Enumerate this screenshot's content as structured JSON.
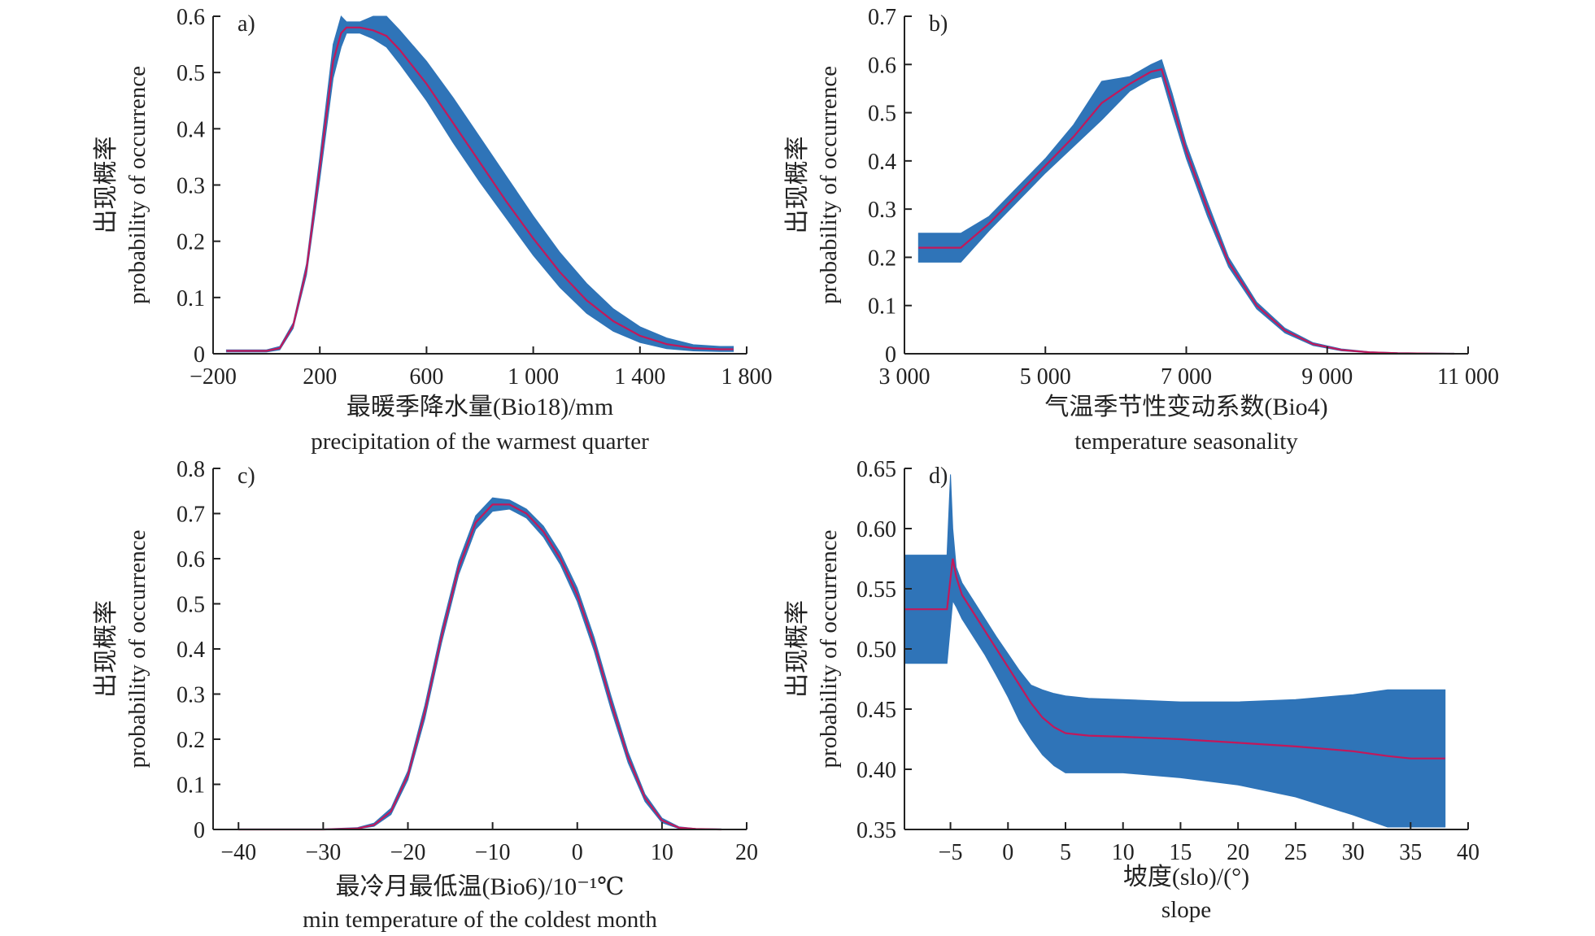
{
  "colors": {
    "band": "#2f74b8",
    "mean_line": "#c2185b",
    "axis": "#222222"
  },
  "chart_data": [
    {
      "id": "a",
      "type": "area",
      "panel_label": "a)",
      "xlabel_zh": "最暖季降水量(Bio18)/mm",
      "xlabel_en": "precipitation of the warmest quarter",
      "ylabel_zh": "出现概率",
      "ylabel_en": "probability of occurrence",
      "xlim": [
        -200,
        1800
      ],
      "ylim": [
        0,
        0.6
      ],
      "xticks": [
        -200,
        200,
        600,
        1000,
        1400,
        1800
      ],
      "xtick_labels": [
        "−200",
        "200",
        "600",
        "1 000",
        "1 400",
        "1 800"
      ],
      "yticks": [
        0,
        0.1,
        0.2,
        0.3,
        0.4,
        0.5,
        0.6
      ],
      "ytick_labels": [
        "0",
        "0.1",
        "0.2",
        "0.3",
        "0.4",
        "0.5",
        "0.6"
      ],
      "grid": false,
      "series": [
        {
          "role": "mean",
          "x": [
            -150,
            0,
            50,
            100,
            150,
            200,
            250,
            280,
            300,
            350,
            400,
            450,
            500,
            600,
            700,
            800,
            900,
            1000,
            1100,
            1200,
            1300,
            1400,
            1500,
            1600,
            1700,
            1750
          ],
          "y": [
            0.005,
            0.005,
            0.01,
            0.05,
            0.15,
            0.33,
            0.52,
            0.57,
            0.58,
            0.58,
            0.575,
            0.565,
            0.54,
            0.48,
            0.41,
            0.34,
            0.27,
            0.205,
            0.145,
            0.095,
            0.058,
            0.032,
            0.017,
            0.01,
            0.008,
            0.008
          ]
        },
        {
          "role": "upper",
          "x": [
            -150,
            0,
            50,
            100,
            150,
            200,
            250,
            280,
            300,
            350,
            400,
            450,
            500,
            600,
            700,
            800,
            900,
            1000,
            1100,
            1200,
            1300,
            1400,
            1500,
            1600,
            1700,
            1750
          ],
          "y": [
            0.007,
            0.007,
            0.013,
            0.055,
            0.16,
            0.35,
            0.55,
            0.6,
            0.59,
            0.59,
            0.6,
            0.6,
            0.575,
            0.52,
            0.455,
            0.385,
            0.315,
            0.245,
            0.18,
            0.125,
            0.08,
            0.048,
            0.028,
            0.016,
            0.013,
            0.013
          ]
        },
        {
          "role": "lower",
          "x": [
            -150,
            0,
            50,
            100,
            150,
            200,
            250,
            280,
            300,
            350,
            400,
            450,
            500,
            600,
            700,
            800,
            900,
            1000,
            1100,
            1200,
            1300,
            1400,
            1500,
            1600,
            1700,
            1750
          ],
          "y": [
            0.003,
            0.003,
            0.007,
            0.045,
            0.14,
            0.31,
            0.49,
            0.545,
            0.57,
            0.57,
            0.56,
            0.545,
            0.515,
            0.45,
            0.375,
            0.305,
            0.24,
            0.175,
            0.118,
            0.072,
            0.04,
            0.02,
            0.009,
            0.005,
            0.004,
            0.004
          ]
        }
      ]
    },
    {
      "id": "b",
      "type": "area",
      "panel_label": "b)",
      "xlabel_zh": "气温季节性变动系数(Bio4)",
      "xlabel_en": "temperature seasonality",
      "ylabel_zh": "出现概率",
      "ylabel_en": "probability of occurrence",
      "xlim": [
        3000,
        11000
      ],
      "ylim": [
        0,
        0.7
      ],
      "xticks": [
        3000,
        5000,
        7000,
        9000,
        11000
      ],
      "xtick_labels": [
        "3 000",
        "5 000",
        "7 000",
        "9 000",
        "11 000"
      ],
      "yticks": [
        0,
        0.1,
        0.2,
        0.3,
        0.4,
        0.5,
        0.6,
        0.7
      ],
      "ytick_labels": [
        "0",
        "0.1",
        "0.2",
        "0.3",
        "0.4",
        "0.5",
        "0.6",
        "0.7"
      ],
      "grid": false,
      "series": [
        {
          "role": "mean",
          "x": [
            3200,
            3800,
            4200,
            4600,
            5000,
            5400,
            5800,
            6200,
            6500,
            6650,
            6800,
            7000,
            7300,
            7600,
            8000,
            8400,
            8800,
            9200,
            9600,
            10000,
            10800
          ],
          "y": [
            0.22,
            0.22,
            0.27,
            0.33,
            0.39,
            0.45,
            0.52,
            0.56,
            0.585,
            0.59,
            0.52,
            0.42,
            0.3,
            0.19,
            0.1,
            0.048,
            0.02,
            0.008,
            0.003,
            0.001,
            0.0
          ]
        },
        {
          "role": "upper",
          "x": [
            3200,
            3800,
            4200,
            4600,
            5000,
            5400,
            5800,
            6200,
            6500,
            6650,
            6800,
            7000,
            7300,
            7600,
            8000,
            8400,
            8800,
            9200,
            9600,
            10000,
            10800
          ],
          "y": [
            0.25,
            0.25,
            0.285,
            0.345,
            0.405,
            0.475,
            0.565,
            0.575,
            0.6,
            0.61,
            0.54,
            0.435,
            0.315,
            0.2,
            0.107,
            0.053,
            0.023,
            0.01,
            0.004,
            0.002,
            0.001
          ]
        },
        {
          "role": "lower",
          "x": [
            3200,
            3800,
            4200,
            4600,
            5000,
            5400,
            5800,
            6200,
            6500,
            6650,
            6800,
            7000,
            7300,
            7600,
            8000,
            8400,
            8800,
            9200,
            9600,
            10000,
            10800
          ],
          "y": [
            0.19,
            0.19,
            0.255,
            0.315,
            0.375,
            0.43,
            0.485,
            0.545,
            0.57,
            0.575,
            0.5,
            0.405,
            0.285,
            0.18,
            0.093,
            0.043,
            0.017,
            0.006,
            0.002,
            0.0,
            0.0
          ]
        }
      ]
    },
    {
      "id": "c",
      "type": "area",
      "panel_label": "c)",
      "xlabel_zh": "最冷月最低温(Bio6)/10⁻¹℃",
      "xlabel_en": "min temperature of the coldest month",
      "ylabel_zh": "出现概率",
      "ylabel_en": "probability of occurrence",
      "xlim": [
        -43,
        20
      ],
      "ylim": [
        0,
        0.8
      ],
      "xticks": [
        -40,
        -30,
        -20,
        -10,
        0,
        10,
        20
      ],
      "xtick_labels": [
        "−40",
        "−30",
        "−20",
        "−10",
        "0",
        "10",
        "20"
      ],
      "yticks": [
        0,
        0.1,
        0.2,
        0.3,
        0.4,
        0.5,
        0.6,
        0.7,
        0.8
      ],
      "ytick_labels": [
        "0",
        "0.1",
        "0.2",
        "0.3",
        "0.4",
        "0.5",
        "0.6",
        "0.7",
        "0.8"
      ],
      "grid": false,
      "series": [
        {
          "role": "mean",
          "x": [
            -40,
            -30,
            -26,
            -24,
            -22,
            -20,
            -18,
            -16,
            -14,
            -12,
            -10,
            -8,
            -6,
            -4,
            -2,
            0,
            2,
            4,
            6,
            8,
            10,
            12,
            14,
            17
          ],
          "y": [
            0.0,
            0.0,
            0.002,
            0.01,
            0.04,
            0.12,
            0.26,
            0.43,
            0.58,
            0.68,
            0.72,
            0.72,
            0.7,
            0.66,
            0.6,
            0.52,
            0.41,
            0.28,
            0.16,
            0.07,
            0.02,
            0.004,
            0.001,
            0.0
          ]
        },
        {
          "role": "upper",
          "x": [
            -40,
            -30,
            -26,
            -24,
            -22,
            -20,
            -18,
            -16,
            -14,
            -12,
            -10,
            -8,
            -6,
            -4,
            -2,
            0,
            2,
            4,
            6,
            8,
            10,
            12,
            14,
            17
          ],
          "y": [
            0.001,
            0.001,
            0.004,
            0.014,
            0.047,
            0.13,
            0.275,
            0.445,
            0.595,
            0.695,
            0.735,
            0.73,
            0.71,
            0.672,
            0.613,
            0.535,
            0.425,
            0.295,
            0.172,
            0.078,
            0.025,
            0.006,
            0.002,
            0.001
          ]
        },
        {
          "role": "lower",
          "x": [
            -40,
            -30,
            -26,
            -24,
            -22,
            -20,
            -18,
            -16,
            -14,
            -12,
            -10,
            -8,
            -6,
            -4,
            -2,
            0,
            2,
            4,
            6,
            8,
            10,
            12,
            14,
            17
          ],
          "y": [
            0.0,
            0.0,
            0.001,
            0.007,
            0.033,
            0.11,
            0.245,
            0.415,
            0.565,
            0.665,
            0.705,
            0.71,
            0.69,
            0.648,
            0.587,
            0.505,
            0.395,
            0.265,
            0.148,
            0.062,
            0.015,
            0.002,
            0.0,
            0.0
          ]
        }
      ]
    },
    {
      "id": "d",
      "type": "area",
      "panel_label": "d)",
      "xlabel_zh": "坡度(slo)/(°)",
      "xlabel_en": "slope",
      "ylabel_zh": "出现概率",
      "ylabel_en": "probability of occurrence",
      "xlim": [
        -9,
        40
      ],
      "ylim": [
        0.35,
        0.65
      ],
      "xticks": [
        -5,
        0,
        5,
        10,
        15,
        20,
        25,
        30,
        35,
        40
      ],
      "xtick_labels": [
        "−5",
        "0",
        "5",
        "10",
        "15",
        "20",
        "25",
        "30",
        "35",
        "40"
      ],
      "yticks": [
        0.35,
        0.4,
        0.45,
        0.5,
        0.55,
        0.6,
        0.65
      ],
      "ytick_labels": [
        "0.35",
        "0.40",
        "0.45",
        "0.50",
        "0.55",
        "0.60",
        "0.65"
      ],
      "grid": false,
      "series": [
        {
          "role": "mean",
          "x": [
            -9,
            -5.3,
            -4.8,
            -4.5,
            -4,
            -3,
            -2,
            -1,
            0,
            1,
            2,
            3,
            4,
            5,
            7,
            10,
            15,
            20,
            25,
            30,
            33,
            35,
            38
          ],
          "y": [
            0.533,
            0.533,
            0.575,
            0.56,
            0.545,
            0.53,
            0.515,
            0.5,
            0.485,
            0.47,
            0.455,
            0.443,
            0.435,
            0.43,
            0.428,
            0.427,
            0.425,
            0.422,
            0.419,
            0.415,
            0.411,
            0.409,
            0.409
          ]
        },
        {
          "role": "upper",
          "x": [
            -9,
            -5.3,
            -5,
            -4.8,
            -4.5,
            -4,
            -3,
            -2,
            -1,
            0,
            1,
            2,
            3,
            4,
            5,
            7,
            10,
            15,
            20,
            25,
            30,
            33,
            35,
            38
          ],
          "y": [
            0.578,
            0.578,
            0.645,
            0.6,
            0.568,
            0.555,
            0.54,
            0.525,
            0.51,
            0.496,
            0.482,
            0.47,
            0.466,
            0.463,
            0.461,
            0.459,
            0.458,
            0.456,
            0.456,
            0.458,
            0.462,
            0.466,
            0.466,
            0.466
          ]
        },
        {
          "role": "lower",
          "x": [
            -9,
            -5.3,
            -4.8,
            -4.5,
            -4,
            -3,
            -2,
            -1,
            0,
            1,
            2,
            3,
            4,
            5,
            7,
            10,
            15,
            20,
            25,
            30,
            33,
            35,
            38
          ],
          "y": [
            0.488,
            0.488,
            0.54,
            0.535,
            0.525,
            0.51,
            0.495,
            0.478,
            0.46,
            0.44,
            0.425,
            0.412,
            0.403,
            0.397,
            0.397,
            0.397,
            0.393,
            0.387,
            0.377,
            0.362,
            0.352,
            0.352,
            0.352
          ]
        }
      ]
    }
  ]
}
